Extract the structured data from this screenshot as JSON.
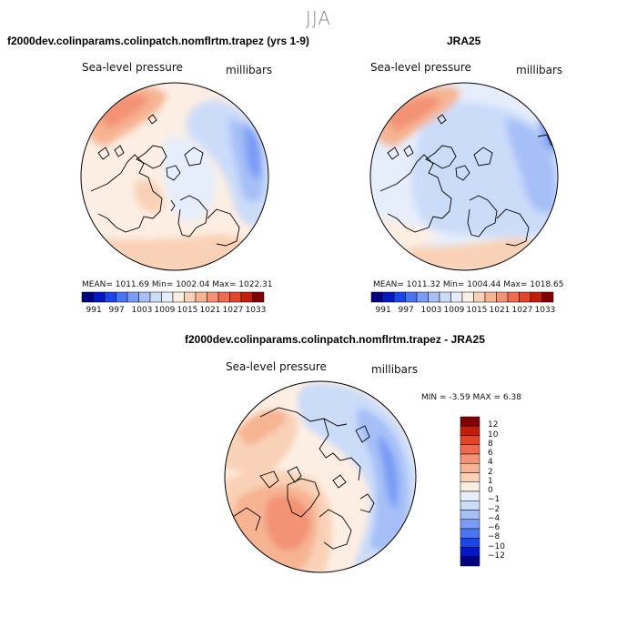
{
  "figure": {
    "season": "JJA",
    "palette_blue": [
      "#000080",
      "#0018c8",
      "#1a45e8",
      "#4a75f2",
      "#7a9cf5",
      "#a6bff7",
      "#cbdcf9",
      "#e6eefb"
    ],
    "palette_red": [
      "#fdeee3",
      "#f9d1b6",
      "#f6b493",
      "#f39274",
      "#ee6b4e",
      "#e44428",
      "#c41e08",
      "#800000"
    ]
  },
  "chart_data": [
    {
      "type": "heatmap",
      "panel": "model",
      "title": "f2000dev.colinparams.colinpatch.nomflrtm.trapez (yrs 1-9)",
      "variable": "Sea-level pressure",
      "units": "millibars",
      "stats_text": "MEAN= 1011.69   Min= 1002.04   Max= 1022.31",
      "mean": 1011.69,
      "min": 1002.04,
      "max": 1022.31,
      "colorbar_labels": [
        "991",
        "997",
        "1003",
        "1009",
        "1015",
        "1021",
        "1027",
        "1033"
      ],
      "colorbar_levels": [
        991,
        994,
        997,
        1000,
        1003,
        1006,
        1009,
        1012,
        1015,
        1018,
        1021,
        1024,
        1027,
        1030,
        1033
      ]
    },
    {
      "type": "heatmap",
      "panel": "obs",
      "title": "JRA25",
      "variable": "Sea-level pressure",
      "units": "millibars",
      "stats_text": "MEAN= 1011.32   Min= 1004.44   Max= 1018.65",
      "mean": 1011.32,
      "min": 1004.44,
      "max": 1018.65,
      "colorbar_labels": [
        "991",
        "997",
        "1003",
        "1009",
        "1015",
        "1021",
        "1027",
        "1033"
      ],
      "colorbar_levels": [
        991,
        994,
        997,
        1000,
        1003,
        1006,
        1009,
        1012,
        1015,
        1018,
        1021,
        1024,
        1027,
        1030,
        1033
      ]
    },
    {
      "type": "heatmap",
      "panel": "difference",
      "title": "f2000dev.colinparams.colinpatch.nomflrtm.trapez - JRA25",
      "variable": "Sea-level pressure",
      "units": "millibars",
      "stats_text": "MIN =   -3.59  MAX =    6.38",
      "min": -3.59,
      "max": 6.38,
      "colorbar_labels": [
        "12",
        "10",
        "8",
        "6",
        "4",
        "2",
        "1",
        "0",
        "−1",
        "−2",
        "−4",
        "−6",
        "−8",
        "−10",
        "−12"
      ]
    }
  ]
}
